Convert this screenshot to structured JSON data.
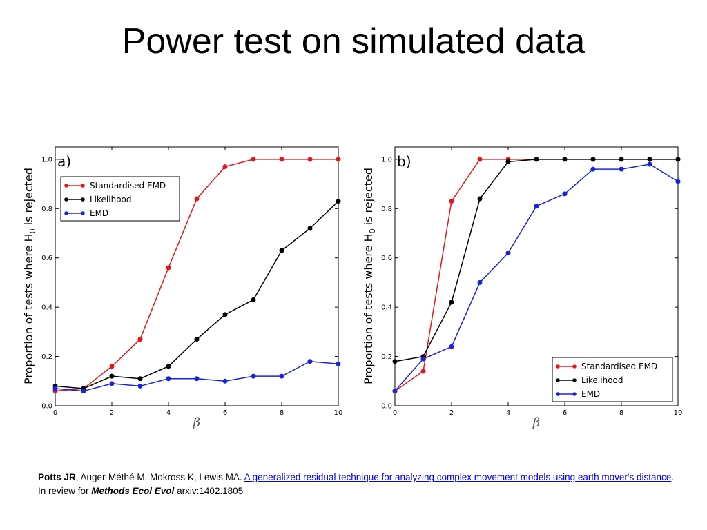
{
  "slide": {
    "title": "Power test on simulated data"
  },
  "citation": {
    "lead_author": "Potts JR",
    "other_authors": ", Auger-Méthé M, Mokross K, Lewis MA. ",
    "link_text": "A generalized residual technique for analyzing complex movement models using earth mover's distance",
    "after_link": ". In review for ",
    "venue": "Methods Ecol Evol",
    "arxiv": " arxiv:1402.1805"
  },
  "chart_data": [
    {
      "type": "line",
      "panel_label": "a)",
      "xlabel": "β",
      "ylabel": "Proportion of tests where H",
      "ylabel_sub": "0",
      "ylabel_tail": " is rejected",
      "xlim": [
        0,
        10
      ],
      "ylim": [
        0,
        1.05
      ],
      "xticks": [
        0,
        2,
        4,
        6,
        8,
        10
      ],
      "yticks": [
        0.0,
        0.2,
        0.4,
        0.6,
        0.8,
        1.0
      ],
      "xtick_labels": [
        "0",
        "2",
        "4",
        "6",
        "8",
        "10"
      ],
      "ytick_labels": [
        "0.0",
        "0.2",
        "0.4",
        "0.6",
        "0.8",
        "1.0"
      ],
      "legend_position": "upper-left",
      "x": [
        0,
        1,
        2,
        3,
        4,
        5,
        6,
        7,
        8,
        9,
        10
      ],
      "series": [
        {
          "name": "Standardised EMD",
          "color": "#e8141b",
          "values": [
            0.06,
            0.07,
            0.16,
            0.27,
            0.56,
            0.84,
            0.97,
            1.0,
            1.0,
            1.0,
            1.0
          ]
        },
        {
          "name": "Likelihood",
          "color": "#000000",
          "values": [
            0.08,
            0.07,
            0.12,
            0.11,
            0.16,
            0.27,
            0.37,
            0.43,
            0.63,
            0.72,
            0.83
          ]
        },
        {
          "name": "EMD",
          "color": "#1a22e0",
          "values": [
            0.07,
            0.06,
            0.09,
            0.08,
            0.11,
            0.11,
            0.1,
            0.12,
            0.12,
            0.18,
            0.17
          ]
        }
      ]
    },
    {
      "type": "line",
      "panel_label": "b)",
      "xlabel": "β",
      "ylabel": "Proportion of tests where H",
      "ylabel_sub": "0",
      "ylabel_tail": " is rejected",
      "xlim": [
        0,
        10
      ],
      "ylim": [
        0,
        1.05
      ],
      "xticks": [
        0,
        2,
        4,
        6,
        8,
        10
      ],
      "yticks": [
        0.0,
        0.2,
        0.4,
        0.6,
        0.8,
        1.0
      ],
      "xtick_labels": [
        "0",
        "2",
        "4",
        "6",
        "8",
        "10"
      ],
      "ytick_labels": [
        "0.0",
        "0.2",
        "0.4",
        "0.6",
        "0.8",
        "1.0"
      ],
      "legend_position": "lower-right",
      "x": [
        0,
        1,
        2,
        3,
        4,
        5,
        6,
        7,
        8,
        9,
        10
      ],
      "series": [
        {
          "name": "Standardised EMD",
          "color": "#e8141b",
          "values": [
            0.06,
            0.14,
            0.83,
            1.0,
            1.0,
            1.0,
            1.0,
            1.0,
            1.0,
            1.0,
            1.0
          ]
        },
        {
          "name": "Likelihood",
          "color": "#000000",
          "values": [
            0.18,
            0.2,
            0.42,
            0.84,
            0.99,
            1.0,
            1.0,
            1.0,
            1.0,
            1.0,
            1.0
          ]
        },
        {
          "name": "EMD",
          "color": "#1a22e0",
          "values": [
            0.06,
            0.19,
            0.24,
            0.5,
            0.62,
            0.81,
            0.86,
            0.96,
            0.96,
            0.98,
            0.91
          ]
        }
      ]
    }
  ]
}
